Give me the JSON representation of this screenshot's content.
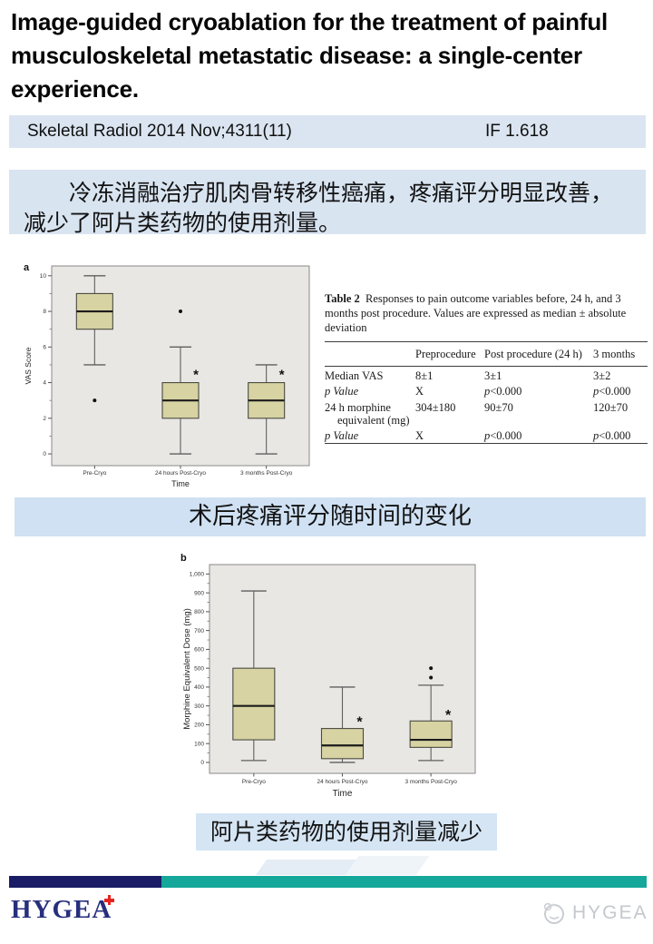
{
  "title": "Image-guided cryoablation for the treatment of painful musculoskeletal metastatic disease: a single-center experience.",
  "journal": {
    "citation": "Skeletal Radiol 2014 Nov;4311(11)",
    "impact_factor": "IF 1.618"
  },
  "summary": "冷冻消融治疗肌肉骨转移性癌痛，疼痛评分明显改善，减少了阿片类药物的使用剂量。",
  "captions": {
    "figure_a": "术后疼痛评分随时间的变化",
    "figure_b": "阿片类药物的使用剂量减少"
  },
  "stray": {
    "label": "Time"
  },
  "table": {
    "label": "Table 2",
    "caption": "Responses to pain outcome variables before, 24 h, and 3 months post procedure. Values are expressed as median ± absolute deviation",
    "columns": [
      "",
      "Preprocedure",
      "Post procedure (24 h)",
      "3 months"
    ],
    "rows": [
      {
        "label": "Median VAS",
        "italic": false,
        "cells": [
          "8±1",
          "3±1",
          "3±2"
        ]
      },
      {
        "label": "p Value",
        "italic": true,
        "cells": [
          "X",
          "p<0.000",
          "p<0.000"
        ]
      },
      {
        "label": "24 h morphine equivalent (mg)",
        "italic": false,
        "cells": [
          "304±180",
          "90±70",
          "120±70"
        ]
      },
      {
        "label": "p Value",
        "italic": true,
        "cells": [
          "X",
          "p<0.000",
          "p<0.000"
        ]
      }
    ]
  },
  "chart_data": [
    {
      "type": "boxplot",
      "panel_label": "a",
      "title": "",
      "xlabel": "Time",
      "ylabel": "VAS Score",
      "ylim": [
        -0.66,
        10.55
      ],
      "yticks": [
        0,
        2,
        4,
        6,
        8,
        10
      ],
      "ytick_labels": [
        "0",
        "2",
        "4",
        "6",
        "8",
        "10"
      ],
      "categories": [
        "Pre-Cryo",
        "24 hours Post-Cryo",
        "3 months Post-Cryo"
      ],
      "boxes": [
        {
          "whisker_low": 5,
          "q1": 7,
          "median": 8,
          "q3": 9,
          "whisker_high": 10,
          "outliers": [
            3
          ],
          "star": null
        },
        {
          "whisker_low": 0,
          "q1": 2,
          "median": 3,
          "q3": 4,
          "whisker_high": 6,
          "outliers": [
            8
          ],
          "star": 4.45
        },
        {
          "whisker_low": 0,
          "q1": 2,
          "median": 3,
          "q3": 4,
          "whisker_high": 5,
          "outliers": [],
          "star": 4.45
        }
      ]
    },
    {
      "type": "boxplot",
      "panel_label": "b",
      "title": "",
      "xlabel": "Time",
      "ylabel": "Morphine Equivalent Dose (mg)",
      "ylim": [
        -58,
        1050
      ],
      "yticks": [
        0,
        100,
        200,
        300,
        400,
        500,
        600,
        700,
        800,
        900,
        1000
      ],
      "ytick_labels": [
        "0",
        "100",
        "200",
        "300",
        "400",
        "500",
        "600",
        "700",
        "800",
        "900",
        "1,000"
      ],
      "categories": [
        "Pre-Cryo",
        "24 hours Post-Cryo",
        "3 months Post-Cryo"
      ],
      "boxes": [
        {
          "whisker_low": 10,
          "q1": 120,
          "median": 300,
          "q3": 500,
          "whisker_high": 910,
          "outliers": [],
          "star": null
        },
        {
          "whisker_low": 0,
          "q1": 20,
          "median": 90,
          "q3": 180,
          "whisker_high": 400,
          "outliers": [],
          "star": 215
        },
        {
          "whisker_low": 10,
          "q1": 80,
          "median": 120,
          "q3": 220,
          "whisker_high": 410,
          "outliers": [
            450,
            500
          ],
          "star": 250
        }
      ]
    }
  ],
  "footer": {
    "logo_text": "HYGEA",
    "watermark_text": "HYGEA"
  },
  "colors": {
    "box_fill": "#d7d3a2",
    "box_stroke": "#4a4a42",
    "plot_bg": "#e8e7e4",
    "plot_frame": "#8a8a8a",
    "whisker": "#5f5f5f",
    "bar_blue": "#dbe5f1",
    "caption_blue": "#cfe1f3",
    "navy": "#1b1c66",
    "teal": "#16a79b",
    "logo_navy": "#272f7d",
    "cross_red": "#e8231f",
    "watermark_gray": "#c4c8cd"
  }
}
